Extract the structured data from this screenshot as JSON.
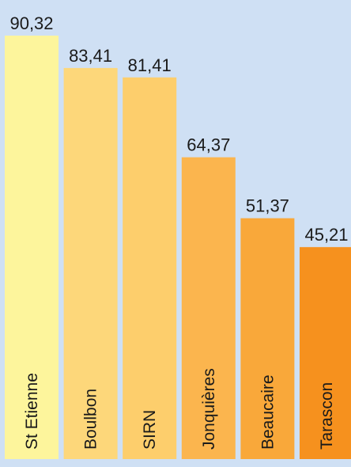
{
  "chart_data": {
    "type": "bar",
    "title": "",
    "xlabel": "",
    "ylabel": "",
    "categories": [
      "St Etienne",
      "Boulbon",
      "SIRN",
      "Jonquières",
      "Beaucaire",
      "Tarascon"
    ],
    "values": [
      90.32,
      83.41,
      81.41,
      64.37,
      51.37,
      45.21
    ],
    "value_labels": [
      "90,32",
      "83,41",
      "81,41",
      "64,37",
      "51,37",
      "45,21"
    ],
    "ylim": [
      0,
      100
    ],
    "grid": false,
    "legend": "none",
    "colors": [
      "#fdf59c",
      "#fdd77a",
      "#fdce6c",
      "#fbb54e",
      "#f9a83a",
      "#f6911e"
    ],
    "background": "#cfe0f4"
  }
}
